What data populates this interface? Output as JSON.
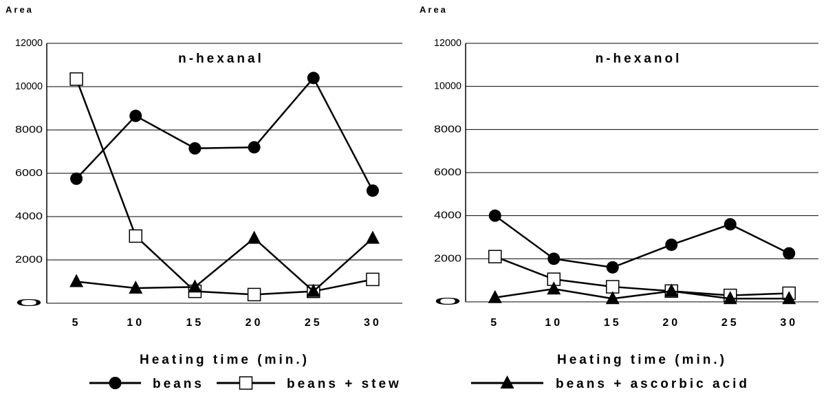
{
  "chart_data": [
    {
      "type": "line",
      "title": "n-hexanal",
      "ylabel": "Area",
      "xlabel": "Heating time (min.)",
      "categories": [
        "5",
        "10",
        "15",
        "20",
        "25",
        "30"
      ],
      "ylim": [
        0,
        12000
      ],
      "yticks": [
        0,
        2000,
        4000,
        6000,
        8000,
        10000,
        12000
      ],
      "grid": true,
      "series": [
        {
          "name": "beans",
          "color": "#000000",
          "marker": "circle",
          "values": [
            5750,
            8650,
            7150,
            7200,
            10400,
            5200
          ]
        },
        {
          "name": "beans + stew",
          "color": "#000000",
          "marker": "square",
          "values": [
            10350,
            3100,
            550,
            400,
            550,
            1100
          ]
        },
        {
          "name": "beans + ascorbic acid",
          "color": "#000000",
          "marker": "triangle",
          "values": [
            1000,
            700,
            750,
            3000,
            550,
            3000
          ]
        }
      ]
    },
    {
      "type": "line",
      "title": "n-hexanol",
      "ylabel": "Area",
      "xlabel": "Heating time (min.)",
      "categories": [
        "5",
        "10",
        "15",
        "20",
        "25",
        "30"
      ],
      "ylim": [
        0,
        12000
      ],
      "yticks": [
        0,
        2000,
        4000,
        6000,
        8000,
        10000,
        12000
      ],
      "grid": true,
      "series": [
        {
          "name": "beans",
          "color": "#000000",
          "marker": "circle",
          "values": [
            4000,
            2000,
            1600,
            2650,
            3600,
            2250
          ]
        },
        {
          "name": "beans + stew",
          "color": "#000000",
          "marker": "square",
          "values": [
            2100,
            1050,
            700,
            500,
            300,
            400
          ]
        },
        {
          "name": "beans + ascorbic acid",
          "color": "#000000",
          "marker": "triangle",
          "values": [
            200,
            600,
            150,
            500,
            150,
            150
          ]
        }
      ]
    }
  ]
}
